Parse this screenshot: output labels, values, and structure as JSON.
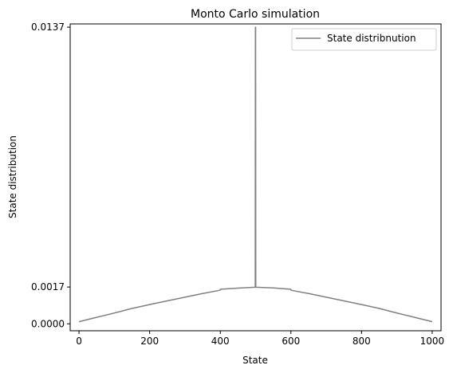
{
  "chart_data": {
    "type": "line",
    "title": "Monto Carlo simulation",
    "xlabel": "State",
    "ylabel": "State distribution",
    "xlim": [
      -25,
      1025
    ],
    "ylim": [
      -0.00032,
      0.01385
    ],
    "xticks": [
      0,
      200,
      400,
      600,
      800,
      1000
    ],
    "yticks": [
      0.0,
      0.0017,
      0.0137
    ],
    "ytick_labels": [
      "0.0000",
      "0.0017",
      "0.0137"
    ],
    "grid": false,
    "legend": {
      "placement": "top-right"
    },
    "series": [
      {
        "name": "State distribnution",
        "color": "#808080",
        "x": [
          0,
          50,
          100,
          150,
          200,
          250,
          300,
          350,
          399,
          401,
          450,
          499,
          499.5,
          500,
          500.5,
          501,
          550,
          599,
          601,
          650,
          700,
          750,
          800,
          850,
          900,
          950,
          1000
        ],
        "y": [
          0.0001,
          0.0003,
          0.0005,
          0.00071,
          0.00089,
          0.00106,
          0.00123,
          0.0014,
          0.00155,
          0.0016,
          0.00165,
          0.00169,
          0.0137,
          0.0137,
          0.00169,
          0.00169,
          0.00166,
          0.0016,
          0.00155,
          0.0014,
          0.00123,
          0.00106,
          0.00089,
          0.00071,
          0.0005,
          0.0003,
          0.0001
        ]
      }
    ]
  }
}
